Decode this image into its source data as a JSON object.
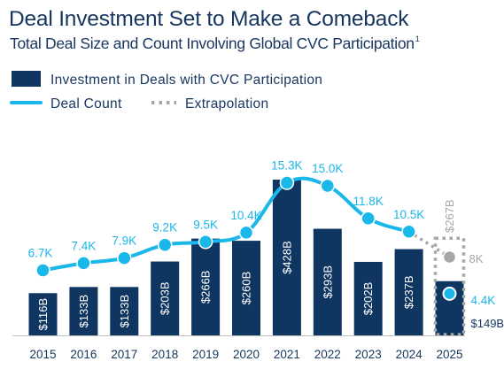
{
  "chart_data": {
    "type": "bar",
    "title": "Deal Investment Set to Make a Comeback",
    "subtitle": "Total Deal Size and Count Involving Global CVC Participation",
    "subtitle_footnote": "1",
    "categories": [
      "2015",
      "2016",
      "2017",
      "2018",
      "2019",
      "2020",
      "2021",
      "2022",
      "2023",
      "2024",
      "2025"
    ],
    "series": [
      {
        "name": "Investment in Deals with CVC Participation",
        "kind": "bar",
        "values": [
          116,
          133,
          133,
          203,
          266,
          260,
          428,
          293,
          202,
          237,
          149
        ],
        "labels": [
          "$116B",
          "$133B",
          "$133B",
          "$203B",
          "$266B",
          "$260B",
          "$428B",
          "$293B",
          "$202B",
          "$237B",
          "$149B"
        ]
      },
      {
        "name": "Deal Count",
        "kind": "line",
        "values": [
          6.7,
          7.4,
          7.9,
          9.2,
          9.5,
          10.4,
          15.3,
          15.0,
          11.8,
          10.5,
          4.4
        ],
        "labels": [
          "6.7K",
          "7.4K",
          "7.9K",
          "9.2K",
          "9.5K",
          "10.4K",
          "15.3K",
          "15.0K",
          "11.8K",
          "10.5K",
          "4.4K"
        ]
      }
    ],
    "extrapolation": {
      "name": "Extrapolation",
      "category": "2025",
      "investment_value": 267,
      "investment_label": "$267B",
      "count_value": 8,
      "count_label": "8K"
    },
    "legend_position": "top-left",
    "grid": false,
    "colors": {
      "bar": "#0f3660",
      "line": "#1ab7ea",
      "extrapolation": "#a6a6a6",
      "text": "#17365f",
      "axis": "#bfbfbf"
    }
  }
}
